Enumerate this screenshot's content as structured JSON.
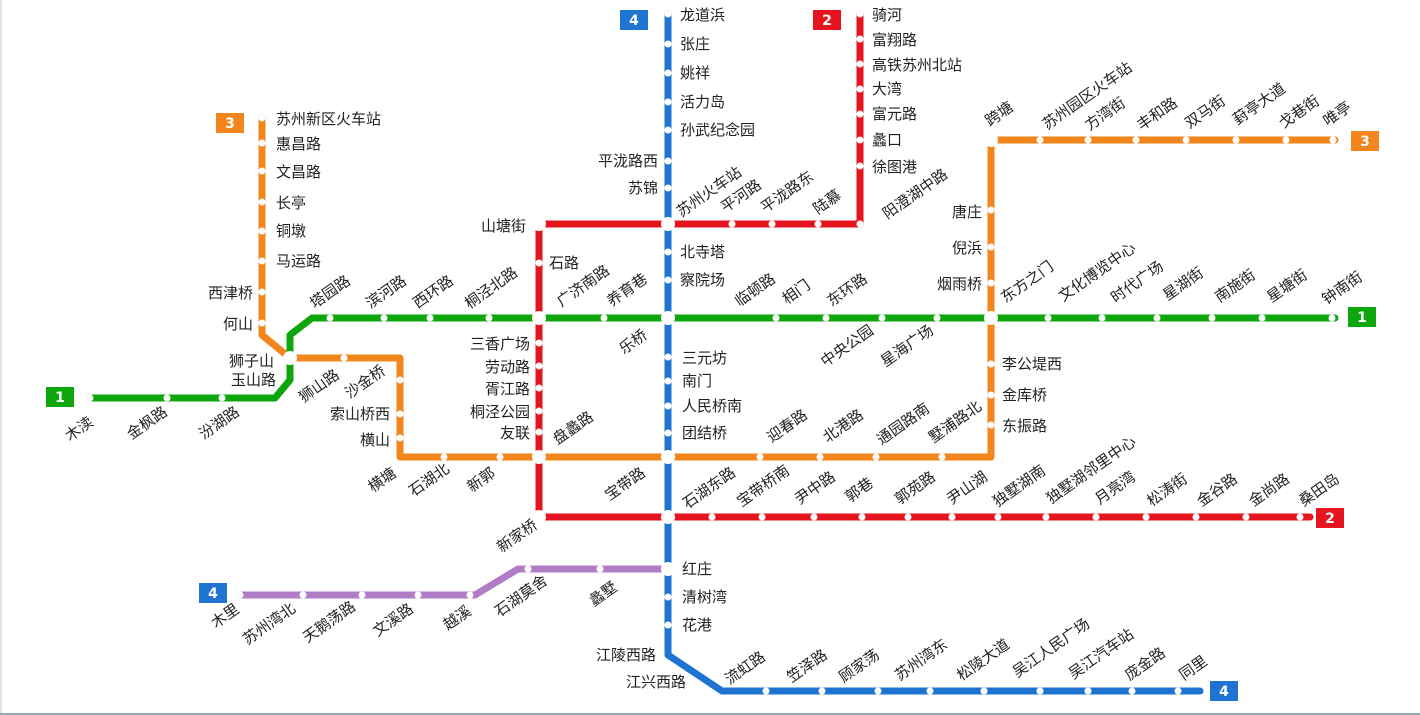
{
  "map": {
    "colors": {
      "line1": "#0da70d",
      "line2": "#e6141e",
      "line3": "#f2851b",
      "line4_main": "#1e74d0",
      "line4_branch": "#b07cc6"
    },
    "badges": {
      "line1": "1",
      "line2": "2",
      "line3": "3",
      "line4": "4"
    },
    "line1": [
      "木渎",
      "金枫路",
      "汾湖路",
      "玉山路",
      "狮子山",
      "塔园路",
      "滨河路",
      "西环路",
      "桐泾北路",
      "广济南路",
      "养育巷",
      "乐桥",
      "临顿路",
      "相门",
      "东环路",
      "中央公园",
      "星海广场",
      "东方之门",
      "文化博览中心",
      "时代广场",
      "星湖街",
      "南施街",
      "星塘街",
      "钟南街"
    ],
    "line2": [
      "骑河",
      "富翔路",
      "高铁苏州北站",
      "大湾",
      "富元路",
      "蠡口",
      "徐图港",
      "阳澄湖中路",
      "陆慕",
      "平泷路东",
      "平河路",
      "苏州火车站",
      "山塘街",
      "石路",
      "广济南路",
      "三香广场",
      "劳动路",
      "胥江路",
      "桐泾公园",
      "友联",
      "盘蠡路",
      "新家桥",
      "石湖东路",
      "宝带桥南",
      "尹中路",
      "郭巷",
      "郭苑路",
      "尹山湖",
      "独墅湖南",
      "独墅湖邻里中心",
      "月亮湾",
      "松涛街",
      "金谷路",
      "金尚路",
      "桑田岛"
    ],
    "line3": [
      "苏州新区火车站",
      "惠昌路",
      "文昌路",
      "长亭",
      "铜墩",
      "马运路",
      "西津桥",
      "何山",
      "狮子山",
      "狮山路",
      "沙金桥",
      "索山桥西",
      "横山",
      "横塘",
      "石湖北",
      "新郭",
      "盘蠡路",
      "宝带路",
      "迎春路",
      "北港路",
      "通园路南",
      "墅浦路北",
      "东振路",
      "金库桥",
      "李公堤西",
      "东方之门",
      "烟雨桥",
      "倪浜",
      "唐庄",
      "跨塘",
      "苏州园区火车站",
      "方湾街",
      "丰和路",
      "双马街",
      "葑亭大道",
      "戈巷街",
      "唯亭"
    ],
    "line4": [
      "龙道浜",
      "张庄",
      "姚祥",
      "活力岛",
      "孙武纪念园",
      "平泷路西",
      "苏锦",
      "苏州火车站",
      "北寺塔",
      "察院场",
      "乐桥",
      "三元坊",
      "南门",
      "人民桥南",
      "团结桥",
      "宝带路",
      "红庄",
      "清树湾",
      "花港",
      "江陵西路",
      "江兴西路",
      "流虹路",
      "笠泽路",
      "顾家荡",
      "苏州湾东",
      "松陵大道",
      "吴江人民广场",
      "吴江汽车站",
      "庞金路",
      "同里"
    ],
    "line4_branch": [
      "木里",
      "苏州湾北",
      "天鹅荡路",
      "文溪路",
      "越溪",
      "石湖莫舍",
      "蠡墅",
      "红庄"
    ]
  }
}
